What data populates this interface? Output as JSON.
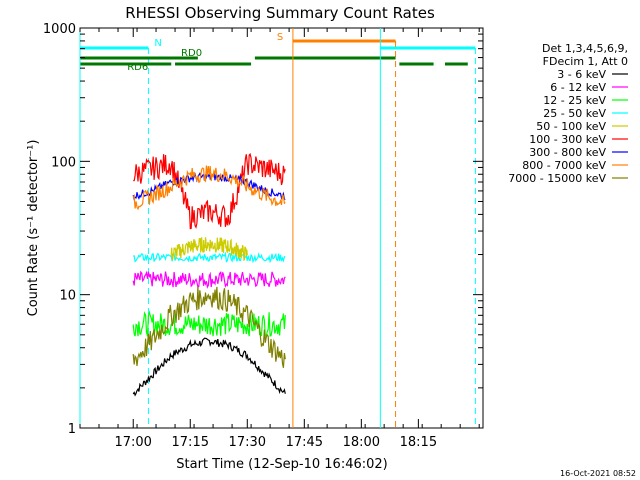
{
  "chart_data": {
    "type": "line",
    "title": "RHESSI Observing Summary Count Rates",
    "xlabel": "Start Time (12-Sep-10 16:46:02)",
    "ylabel": "Count Rate (s⁻¹ detector⁻¹)",
    "y_scale": "log",
    "ylim": [
      1,
      1000
    ],
    "y_ticks": [
      1,
      10,
      100,
      1000
    ],
    "y_tick_labels": [
      "1",
      "10",
      "100",
      "1000"
    ],
    "xlim": [
      "16:46",
      "18:32"
    ],
    "x_ticks": [
      "17:00",
      "17:15",
      "17:30",
      "17:45",
      "18:00",
      "18:15"
    ],
    "grid": false,
    "info_lines": [
      "Det 1,3,4,5,6,9,",
      "FDecim 1, Att 0"
    ],
    "footer_date": "16-Oct-2021 08:52",
    "state_flags": [
      {
        "label": "N",
        "color": "#00ffff",
        "segments": [
          [
            "16:46",
            "17:04"
          ],
          [
            "18:05",
            "18:30"
          ]
        ],
        "markers": [
          "17:04",
          "18:30"
        ]
      },
      {
        "label": "S",
        "color": "#ff8000",
        "segments": [
          [
            "17:42",
            "18:09"
          ]
        ],
        "markers": [
          "18:09"
        ]
      },
      {
        "label": "RD0",
        "color": "#007700",
        "segments": [
          [
            "16:46",
            "17:17"
          ],
          [
            "17:32",
            "18:09"
          ]
        ],
        "markers": []
      },
      {
        "label": "RD6",
        "color": "#007700",
        "segments": [
          [
            "16:46",
            "17:10"
          ],
          [
            "17:11",
            "17:31"
          ],
          [
            "18:10",
            "18:19"
          ],
          [
            "18:22",
            "18:28"
          ]
        ],
        "markers": []
      }
    ],
    "vertical_lines": [
      {
        "time": "16:46",
        "color": "#00ffff",
        "style": "solid"
      },
      {
        "time": "17:42",
        "color": "#ff8000",
        "style": "solid"
      },
      {
        "time": "18:05",
        "color": "#00ffff",
        "style": "solid"
      }
    ],
    "series": [
      {
        "name": "3 - 6 keV",
        "color": "#000000",
        "x": [
          "17:00",
          "17:05",
          "17:10",
          "17:15",
          "17:20",
          "17:25",
          "17:30",
          "17:35",
          "17:40"
        ],
        "values": [
          1.8,
          2.5,
          3.5,
          4.2,
          4.5,
          4.2,
          3.5,
          2.5,
          1.8
        ]
      },
      {
        "name": "6 - 12 keV",
        "color": "#ff00ff",
        "x": [
          "17:00",
          "17:05",
          "17:10",
          "17:15",
          "17:20",
          "17:25",
          "17:30",
          "17:35",
          "17:40"
        ],
        "values": [
          13,
          13,
          13,
          13,
          13,
          13,
          13,
          13,
          13
        ]
      },
      {
        "name": "12 - 25 keV",
        "color": "#00ff00",
        "x": [
          "17:00",
          "17:05",
          "17:10",
          "17:15",
          "17:20",
          "17:25",
          "17:30",
          "17:35",
          "17:40"
        ],
        "values": [
          6,
          6,
          6,
          6,
          6,
          6,
          6,
          6,
          6
        ]
      },
      {
        "name": "25 - 50 keV",
        "color": "#00ffff",
        "x": [
          "17:00",
          "17:05",
          "17:10",
          "17:15",
          "17:20",
          "17:25",
          "17:30",
          "17:35",
          "17:40"
        ],
        "values": [
          19,
          19,
          19,
          19,
          19,
          19,
          19,
          19,
          19
        ]
      },
      {
        "name": "50 - 100 keV",
        "color": "#cccc00",
        "x": [
          "17:10",
          "17:15",
          "17:20",
          "17:25",
          "17:30"
        ],
        "values": [
          20,
          23,
          24,
          23,
          20
        ]
      },
      {
        "name": "100 - 300 keV",
        "color": "#ff0000",
        "x": [
          "17:00",
          "17:05",
          "17:10",
          "17:15",
          "17:20",
          "17:25",
          "17:30",
          "17:35",
          "17:40"
        ],
        "values": [
          80,
          88,
          97,
          38,
          42,
          38,
          97,
          88,
          80
        ]
      },
      {
        "name": "300 - 800 keV",
        "color": "#0000ff",
        "x": [
          "17:00",
          "17:05",
          "17:10",
          "17:15",
          "17:20",
          "17:25",
          "17:30",
          "17:35",
          "17:40"
        ],
        "values": [
          55,
          60,
          70,
          75,
          77,
          75,
          70,
          60,
          55
        ]
      },
      {
        "name": "800 - 7000 keV",
        "color": "#ff8000",
        "x": [
          "17:00",
          "17:05",
          "17:10",
          "17:15",
          "17:20",
          "17:25",
          "17:30",
          "17:35",
          "17:40"
        ],
        "values": [
          48,
          55,
          65,
          78,
          82,
          78,
          65,
          55,
          48
        ]
      },
      {
        "name": "7000 - 15000 keV",
        "color": "#808000",
        "x": [
          "17:00",
          "17:05",
          "17:10",
          "17:15",
          "17:20",
          "17:25",
          "17:30",
          "17:35",
          "17:40"
        ],
        "values": [
          3.2,
          4.5,
          7,
          9,
          10,
          9,
          7,
          4.5,
          3.2
        ]
      }
    ]
  }
}
